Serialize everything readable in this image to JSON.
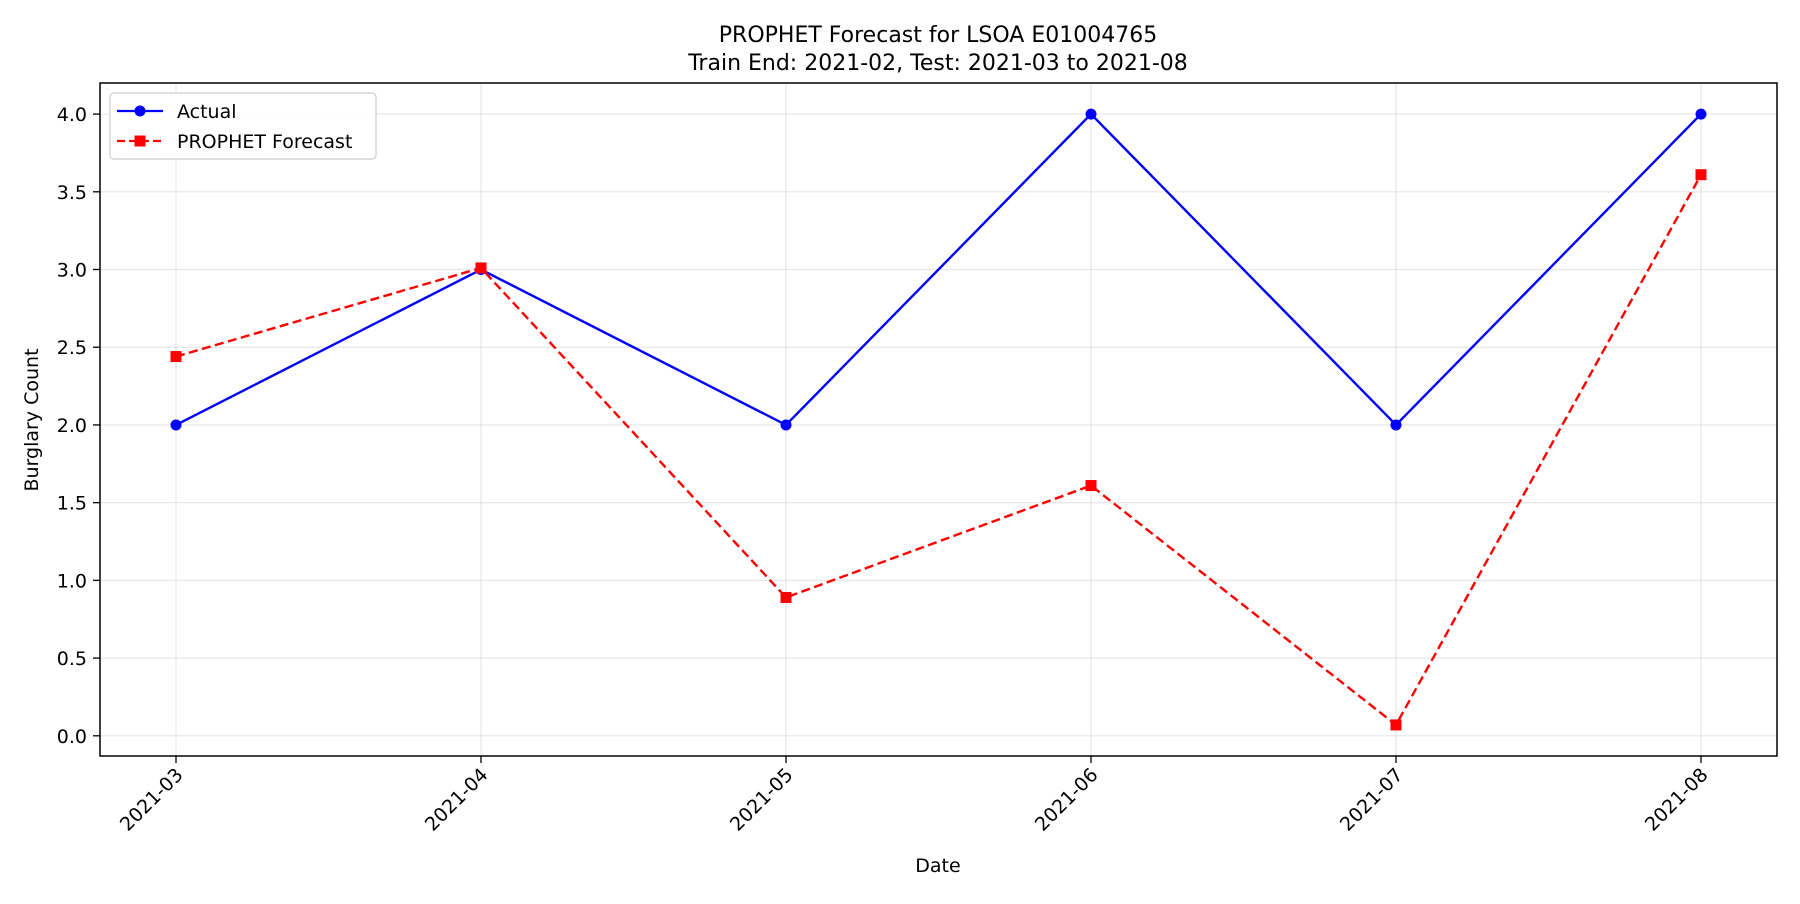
{
  "chart_data": {
    "type": "line",
    "title": "PROPHET Forecast for LSOA E01004765",
    "subtitle": "Train End: 2021-02, Test: 2021-03 to 2021-08",
    "xlabel": "Date",
    "ylabel": "Burglary Count",
    "x": [
      "2021-03",
      "2021-04",
      "2021-05",
      "2021-06",
      "2021-07",
      "2021-08"
    ],
    "ylim": [
      -0.13,
      4.2
    ],
    "yticks": [
      "0.0",
      "0.5",
      "1.0",
      "1.5",
      "2.0",
      "2.5",
      "3.0",
      "3.5",
      "4.0"
    ],
    "grid": true,
    "legend_position": "top-left",
    "series": [
      {
        "name": "Actual",
        "values": [
          2,
          3,
          2,
          4,
          2,
          4
        ],
        "color": "#0000ff",
        "line_style": "solid",
        "marker": "circle"
      },
      {
        "name": "PROPHET Forecast",
        "values": [
          2.44,
          3.01,
          0.89,
          1.61,
          0.07,
          3.61
        ],
        "color": "#ff0000",
        "line_style": "dashed",
        "marker": "square"
      }
    ]
  }
}
